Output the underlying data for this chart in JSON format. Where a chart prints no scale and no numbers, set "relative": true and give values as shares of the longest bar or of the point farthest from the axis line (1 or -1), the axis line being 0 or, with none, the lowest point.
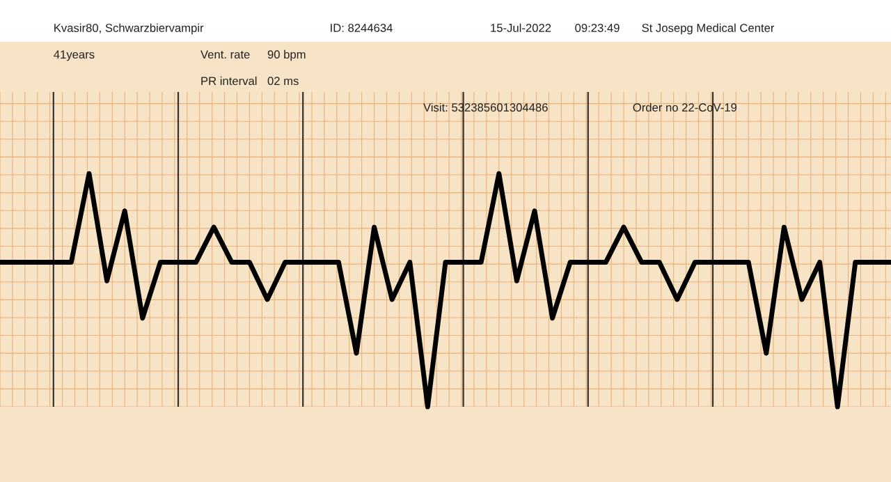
{
  "chart_data": {
    "type": "line",
    "relative": true,
    "grid": true,
    "color": "#000000",
    "annotations": [
      "Kvasir80, Schwarzbiervampir",
      "ID: 8244634",
      "15-Jul-2022",
      "09:23:49",
      "St Josepg Medical Center",
      "41years",
      "Vent. rate",
      "90 bpm",
      "PR interval",
      "02 ms",
      "Visit: 532385601304486",
      "Order no 22-CoV-19"
    ],
    "categories": [
      null,
      null,
      null,
      null,
      null,
      null,
      null,
      null,
      null,
      null,
      null,
      null,
      null,
      null,
      null,
      null,
      null,
      null,
      null,
      null,
      null,
      null,
      null,
      null,
      null,
      null,
      null,
      null,
      null,
      null,
      null,
      null,
      null,
      null,
      null,
      null,
      null,
      null,
      null,
      null,
      null,
      null,
      null,
      null,
      null,
      null,
      null,
      null,
      null,
      null,
      null
    ],
    "values": [
      0.62,
      0.62,
      0.62,
      0.62,
      0.62,
      1,
      0.54,
      0.84,
      0.38,
      0.62,
      0.62,
      0.62,
      0.77,
      0.62,
      0.62,
      0.46,
      0.62,
      0.62,
      0.62,
      0.62,
      0.23,
      0.77,
      0.46,
      0.62,
      0,
      0.62,
      0.62,
      0.62,
      1,
      0.54,
      0.84,
      0.38,
      0.62,
      0.62,
      0.62,
      0.77,
      0.62,
      0.62,
      0.46,
      0.62,
      0.62,
      0.62,
      0.62,
      0.23,
      0.77,
      0.46,
      0.62,
      0,
      0.62,
      0.62,
      0.62
    ]
  }
}
